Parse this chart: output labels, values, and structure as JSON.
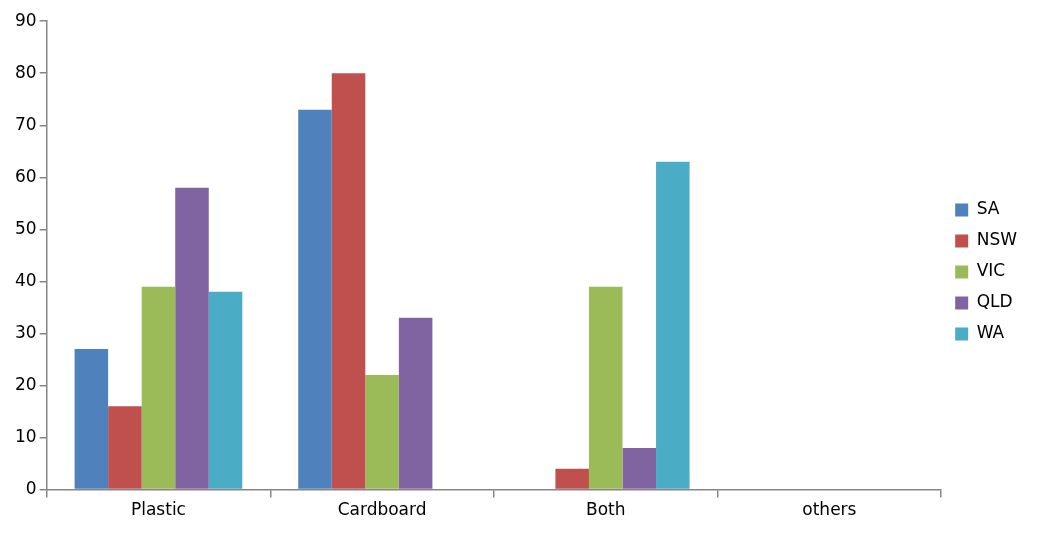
{
  "chart_data": {
    "type": "bar",
    "categories": [
      "Plastic",
      "Cardboard",
      "Both",
      "others"
    ],
    "series": [
      {
        "name": "SA",
        "color": "#4f81bd",
        "values": [
          27,
          73,
          0,
          0
        ]
      },
      {
        "name": "NSW",
        "color": "#c0504d",
        "values": [
          16,
          80,
          4,
          0
        ]
      },
      {
        "name": "VIC",
        "color": "#9bbb59",
        "values": [
          39,
          22,
          39,
          0
        ]
      },
      {
        "name": "QLD",
        "color": "#8064a2",
        "values": [
          58,
          33,
          8,
          0
        ]
      },
      {
        "name": "WA",
        "color": "#4bacc6",
        "values": [
          38,
          0,
          63,
          0
        ]
      }
    ],
    "ylim": [
      0,
      90
    ],
    "yticks": [
      0,
      10,
      20,
      30,
      40,
      50,
      60,
      70,
      80,
      90
    ],
    "grid": false,
    "legend": "right"
  }
}
